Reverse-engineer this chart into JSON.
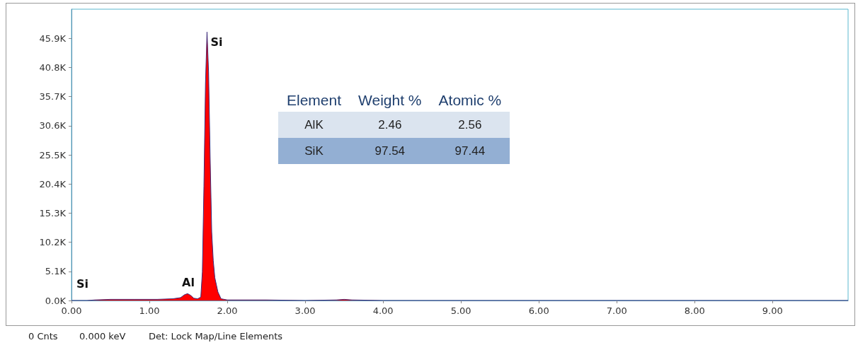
{
  "chart_data": [
    {
      "type": "area",
      "xlim": [
        0,
        9.97
      ],
      "ylim": [
        0,
        51000
      ],
      "xticks": [
        {
          "value": 0,
          "label": "0.00"
        },
        {
          "value": 1,
          "label": "1.00"
        },
        {
          "value": 2,
          "label": "2.00"
        },
        {
          "value": 3,
          "label": "3.00"
        },
        {
          "value": 4,
          "label": "4.00"
        },
        {
          "value": 5,
          "label": "5.00"
        },
        {
          "value": 6,
          "label": "6.00"
        },
        {
          "value": 7,
          "label": "7.00"
        },
        {
          "value": 8,
          "label": "8.00"
        },
        {
          "value": 9,
          "label": "9.00"
        }
      ],
      "yticks": [
        {
          "value": 0,
          "label": "0.0K"
        },
        {
          "value": 5100,
          "label": "5.1K"
        },
        {
          "value": 10200,
          "label": "10.2K"
        },
        {
          "value": 15300,
          "label": "15.3K"
        },
        {
          "value": 20400,
          "label": "20.4K"
        },
        {
          "value": 25500,
          "label": "25.5K"
        },
        {
          "value": 30600,
          "label": "30.6K"
        },
        {
          "value": 35700,
          "label": "35.7K"
        },
        {
          "value": 40800,
          "label": "40.8K"
        },
        {
          "value": 45900,
          "label": "45.9K"
        }
      ],
      "grid": false,
      "marker": "none",
      "series": [
        {
          "color": "#ff0000",
          "x": [
            0,
            0.2,
            0.3,
            0.5,
            0.8,
            1.1,
            1.3,
            1.4,
            1.45,
            1.49,
            1.53,
            1.57,
            1.62,
            1.66,
            1.68,
            1.7,
            1.72,
            1.74,
            1.76,
            1.78,
            1.8,
            1.82,
            1.84,
            1.88,
            1.92,
            2.0,
            2.5,
            3.0,
            3.4,
            3.5,
            3.6,
            4.0,
            5.0,
            6.0,
            7.0,
            8.0,
            9.0,
            9.97
          ],
          "values": [
            0,
            0,
            100,
            200,
            200,
            200,
            300,
            500,
            1000,
            1200,
            900,
            400,
            300,
            600,
            5000,
            20000,
            38000,
            47000,
            40000,
            25000,
            12000,
            7000,
            4000,
            1500,
            300,
            100,
            100,
            0,
            100,
            200,
            100,
            0,
            0,
            0,
            0,
            0,
            0,
            0
          ]
        }
      ],
      "annotations": [
        "Si",
        {
          "text": "Al",
          "x": 1.5,
          "y": 1600
        },
        {
          "text": "Si",
          "x": 1.74,
          "y": 47000
        },
        "0 Cnts",
        "0.000 keV",
        "Det: Lock Map/Line Elements"
      ]
    },
    {
      "type": "other",
      "xlabel": "Element",
      "categories": [
        "AlK",
        "SiK"
      ],
      "data_labels": true,
      "series": [
        {
          "name": "Weight %",
          "values": [
            2.46,
            97.54
          ],
          "colors": [
            "#dbe4ef",
            "#93afd3"
          ]
        },
        {
          "name": "Atomic %",
          "values": [
            2.56,
            97.44
          ],
          "colors": [
            "#dbe4ef",
            "#93afd3"
          ]
        }
      ]
    }
  ]
}
